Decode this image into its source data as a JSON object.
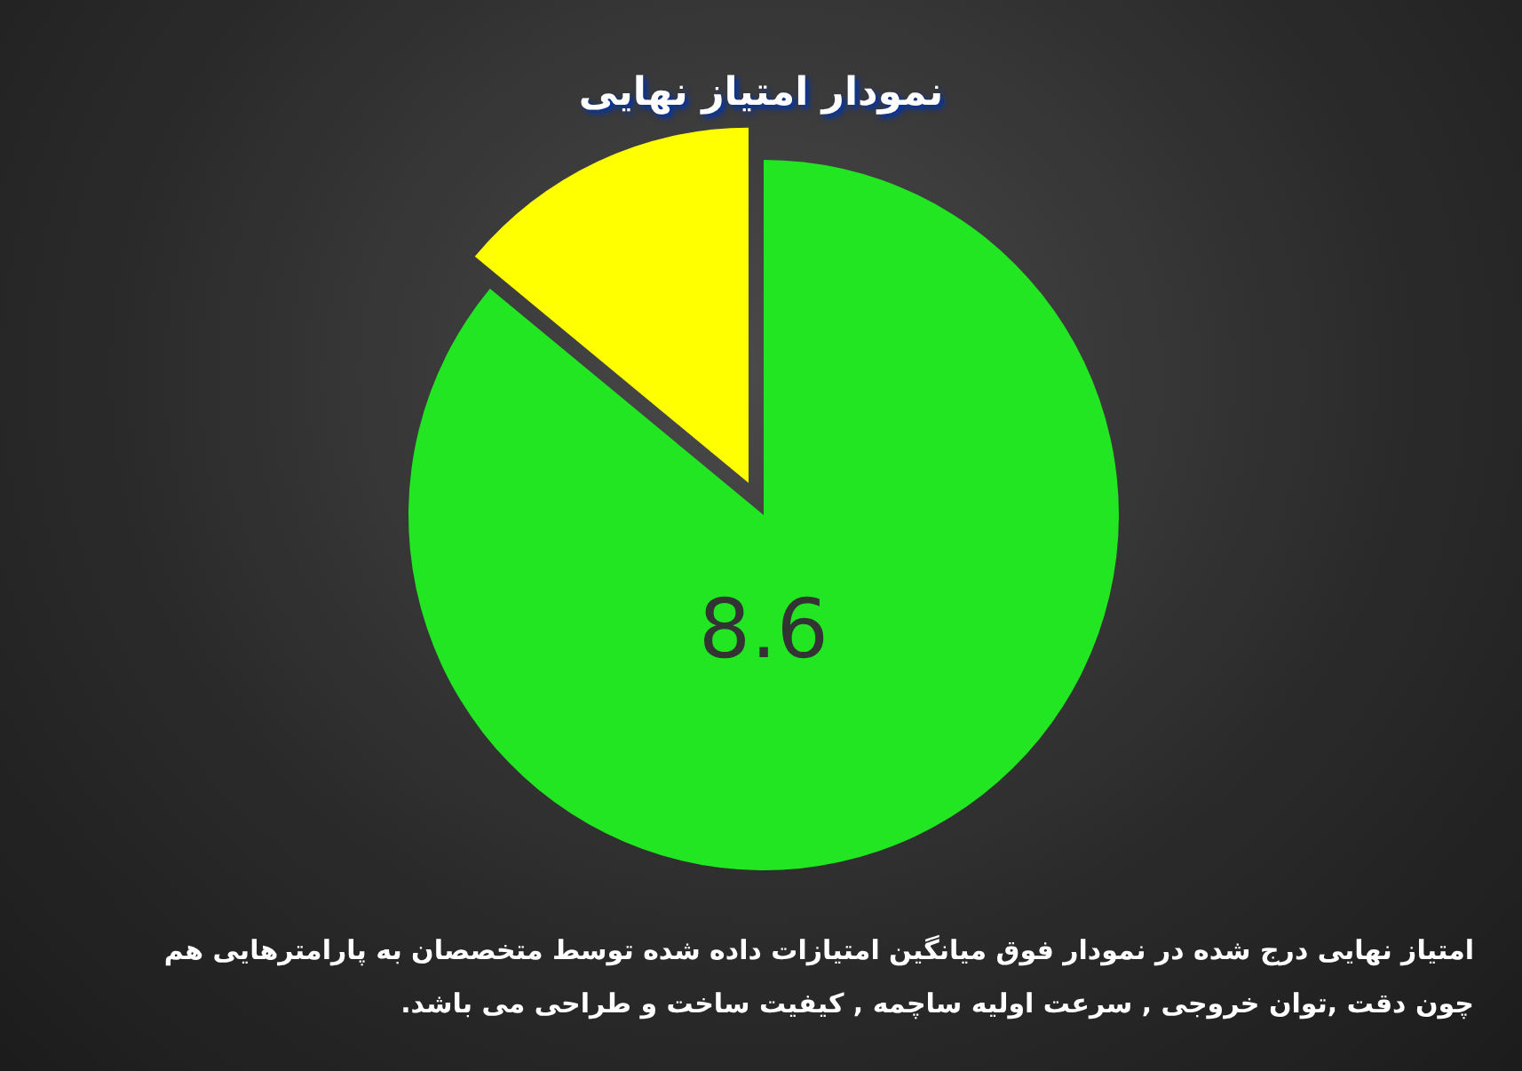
{
  "chart_data": {
    "type": "pie",
    "title": "نمودار امتیاز نهایی",
    "categories": [
      null,
      null
    ],
    "values": [
      8.6,
      1.4
    ],
    "colors": [
      "#22e622",
      "#ffff00"
    ],
    "value_labels": [
      "8.6",
      null
    ],
    "annotations": [
      "امتیاز نهایی درج شده در نمودار فوق میانگین امتیازات داده شده توسط متخصصان به پارامترهایی هم چون دقت ,توان خروجی , سرعت اولیه ساچمه , کیفیت ساخت و طراحی می باشد."
    ]
  }
}
